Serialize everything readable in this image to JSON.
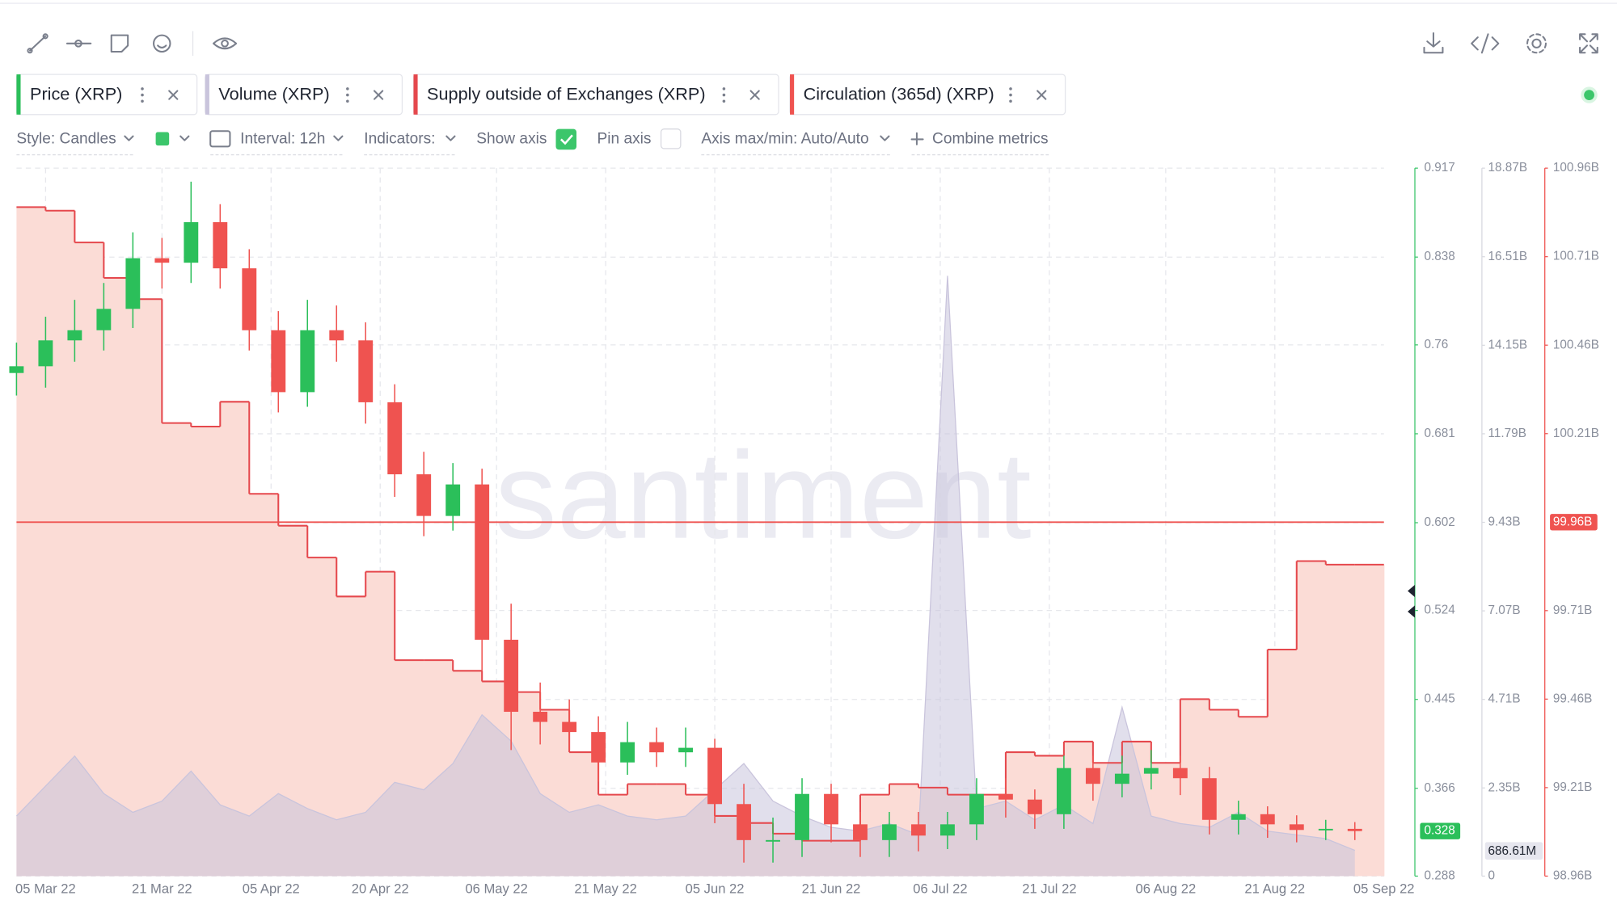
{
  "watermark": "santiment",
  "controls": {
    "style": "Style: Candles",
    "interval": "Interval: 12h",
    "indicators": "Indicators:",
    "show_axis": "Show axis",
    "pin_axis": "Pin axis",
    "axis_minmax": "Axis max/min: Auto/Auto",
    "combine": "Combine metrics"
  },
  "chart_data": {
    "type": "candlestick",
    "xlim": [
      "2022-03-01",
      "2022-09-05"
    ],
    "xticks": [
      {
        "value": "2022-03-05",
        "label": "05 Mar 22"
      },
      {
        "value": "2022-03-21",
        "label": "21 Mar 22"
      },
      {
        "value": "2022-04-05",
        "label": "05 Apr 22"
      },
      {
        "value": "2022-04-20",
        "label": "20 Apr 22"
      },
      {
        "value": "2022-05-06",
        "label": "06 May 22"
      },
      {
        "value": "2022-05-21",
        "label": "21 May 22"
      },
      {
        "value": "2022-06-05",
        "label": "05 Jun 22"
      },
      {
        "value": "2022-06-21",
        "label": "21 Jun 22"
      },
      {
        "value": "2022-07-06",
        "label": "06 Jul 22"
      },
      {
        "value": "2022-07-21",
        "label": "21 Jul 22"
      },
      {
        "value": "2022-08-06",
        "label": "06 Aug 22"
      },
      {
        "value": "2022-08-21",
        "label": "21 Aug 22"
      },
      {
        "value": "2022-09-05",
        "label": "05 Sep 22"
      }
    ],
    "ylim": [
      0.288,
      0.917
    ],
    "yticks": [
      0.917,
      0.838,
      0.76,
      0.681,
      0.602,
      0.524,
      0.445,
      0.366,
      0.288
    ],
    "y2lim": [
      0,
      18.87
    ],
    "y2ticks": [
      {
        "value": 18.87,
        "label": "18.87B"
      },
      {
        "value": 16.51,
        "label": "16.51B"
      },
      {
        "value": 14.15,
        "label": "14.15B"
      },
      {
        "value": 11.79,
        "label": "11.79B"
      },
      {
        "value": 9.43,
        "label": "9.43B"
      },
      {
        "value": 7.07,
        "label": "7.07B"
      },
      {
        "value": 4.71,
        "label": "4.71B"
      },
      {
        "value": 2.35,
        "label": "2.35B"
      },
      0
    ],
    "y3lim": [
      98.96,
      100.96
    ],
    "y3ticks": [
      {
        "value": 100.96,
        "label": "100.96B"
      },
      {
        "value": 100.71,
        "label": "100.71B"
      },
      {
        "value": 100.46,
        "label": "100.46B"
      },
      {
        "value": 100.21,
        "label": "100.21B"
      },
      {
        "value": 99.71,
        "label": "99.71B"
      },
      {
        "value": 99.46,
        "label": "99.46B"
      },
      {
        "value": 99.21,
        "label": "99.21B"
      },
      {
        "value": 98.96,
        "label": "98.96B"
      }
    ],
    "grid": true,
    "x": [
      "2022-03-01",
      "2022-03-05",
      "2022-03-09",
      "2022-03-13",
      "2022-03-17",
      "2022-03-21",
      "2022-03-25",
      "2022-03-29",
      "2022-04-02",
      "2022-04-06",
      "2022-04-10",
      "2022-04-14",
      "2022-04-18",
      "2022-04-22",
      "2022-04-26",
      "2022-04-30",
      "2022-05-04",
      "2022-05-08",
      "2022-05-12",
      "2022-05-16",
      "2022-05-20",
      "2022-05-24",
      "2022-05-28",
      "2022-06-01",
      "2022-06-05",
      "2022-06-09",
      "2022-06-13",
      "2022-06-17",
      "2022-06-21",
      "2022-06-25",
      "2022-06-29",
      "2022-07-03",
      "2022-07-07",
      "2022-07-11",
      "2022-07-15",
      "2022-07-19",
      "2022-07-23",
      "2022-07-27",
      "2022-07-31",
      "2022-08-04",
      "2022-08-08",
      "2022-08-12",
      "2022-08-16",
      "2022-08-20",
      "2022-08-24",
      "2022-08-28",
      "2022-09-01"
    ],
    "series": [
      {
        "name": "Price (XRP)",
        "type": "candlestick",
        "axis": "y",
        "color": "#2bbf5a",
        "down_color": "#ef5350",
        "open": [
          0.735,
          0.741,
          0.764,
          0.773,
          0.792,
          0.837,
          0.833,
          0.869,
          0.828,
          0.773,
          0.718,
          0.773,
          0.764,
          0.709,
          0.645,
          0.608,
          0.636,
          0.498,
          0.434,
          0.425,
          0.416,
          0.389,
          0.407,
          0.398,
          0.402,
          0.352,
          0.32,
          0.32,
          0.361,
          0.334,
          0.32,
          0.334,
          0.324,
          0.334,
          0.361,
          0.356,
          0.343,
          0.384,
          0.37,
          0.379,
          0.384,
          0.375,
          0.338,
          0.343,
          0.334,
          0.329,
          0.33
        ],
        "high": [
          0.762,
          0.785,
          0.8,
          0.815,
          0.86,
          0.855,
          0.905,
          0.885,
          0.845,
          0.79,
          0.8,
          0.795,
          0.78,
          0.725,
          0.665,
          0.655,
          0.65,
          0.53,
          0.46,
          0.445,
          0.43,
          0.425,
          0.42,
          0.42,
          0.41,
          0.37,
          0.34,
          0.375,
          0.37,
          0.345,
          0.345,
          0.345,
          0.345,
          0.375,
          0.375,
          0.365,
          0.395,
          0.395,
          0.395,
          0.4,
          0.395,
          0.385,
          0.355,
          0.35,
          0.342,
          0.338,
          0.336
        ],
        "low": [
          0.715,
          0.722,
          0.745,
          0.755,
          0.775,
          0.81,
          0.815,
          0.81,
          0.755,
          0.7,
          0.705,
          0.745,
          0.69,
          0.625,
          0.59,
          0.595,
          0.47,
          0.4,
          0.405,
          0.4,
          0.372,
          0.378,
          0.385,
          0.385,
          0.335,
          0.3,
          0.3,
          0.305,
          0.318,
          0.305,
          0.305,
          0.31,
          0.312,
          0.32,
          0.34,
          0.33,
          0.33,
          0.355,
          0.358,
          0.365,
          0.36,
          0.325,
          0.325,
          0.322,
          0.318,
          0.32,
          0.32
        ],
        "close": [
          0.741,
          0.764,
          0.773,
          0.792,
          0.837,
          0.833,
          0.869,
          0.828,
          0.773,
          0.718,
          0.773,
          0.764,
          0.709,
          0.645,
          0.608,
          0.636,
          0.498,
          0.434,
          0.425,
          0.416,
          0.389,
          0.407,
          0.398,
          0.402,
          0.352,
          0.32,
          0.32,
          0.361,
          0.334,
          0.32,
          0.334,
          0.324,
          0.334,
          0.361,
          0.356,
          0.343,
          0.384,
          0.37,
          0.379,
          0.384,
          0.375,
          0.338,
          0.343,
          0.334,
          0.329,
          0.33,
          0.328
        ]
      },
      {
        "name": "Volume (XRP)",
        "type": "area",
        "axis": "y2",
        "color": "#c9c4dc",
        "values": [
          1.6,
          2.4,
          3.2,
          2.2,
          1.7,
          2.0,
          2.8,
          1.9,
          1.6,
          2.2,
          1.8,
          1.5,
          1.7,
          2.5,
          2.3,
          3.0,
          4.3,
          3.6,
          2.2,
          1.7,
          1.9,
          1.6,
          1.5,
          1.6,
          2.3,
          3.0,
          2.0,
          1.6,
          1.3,
          1.2,
          1.4,
          1.1,
          16.0,
          1.8,
          2.0,
          1.5,
          1.9,
          1.4,
          4.5,
          1.6,
          1.4,
          1.3,
          1.7,
          1.2,
          1.1,
          1.0,
          0.68661
        ],
        "value_labels": [
          null,
          null,
          null,
          null,
          null,
          null,
          null,
          null,
          null,
          null,
          null,
          null,
          null,
          null,
          null,
          null,
          null,
          null,
          null,
          null,
          null,
          null,
          null,
          null,
          null,
          null,
          null,
          null,
          null,
          null,
          null,
          null,
          null,
          null,
          null,
          null,
          null,
          null,
          null,
          null,
          null,
          null,
          null,
          null,
          null,
          null,
          "686.61M"
        ]
      },
      {
        "name": "Supply outside of Exchanges (XRP)",
        "type": "step",
        "axis": "y3",
        "color": "#e5484d",
        "fill": "#fbdcd6",
        "values": [
          100.85,
          100.84,
          100.75,
          100.65,
          100.59,
          100.24,
          100.23,
          100.3,
          100.04,
          99.95,
          99.86,
          99.75,
          99.82,
          99.57,
          99.57,
          99.54,
          99.51,
          99.48,
          99.43,
          99.31,
          99.19,
          99.22,
          99.22,
          99.19,
          99.13,
          99.11,
          99.08,
          99.06,
          99.06,
          99.19,
          99.22,
          99.21,
          99.19,
          99.19,
          99.31,
          99.3,
          99.34,
          99.28,
          99.34,
          99.28,
          99.46,
          99.43,
          99.41,
          99.6,
          99.85,
          99.84,
          99.84
        ]
      },
      {
        "name": "Circulation (365d) (XRP)",
        "type": "hline",
        "axis": "y3",
        "color": "#ef5350",
        "value": 99.96,
        "value_label": "99.96B"
      }
    ]
  }
}
